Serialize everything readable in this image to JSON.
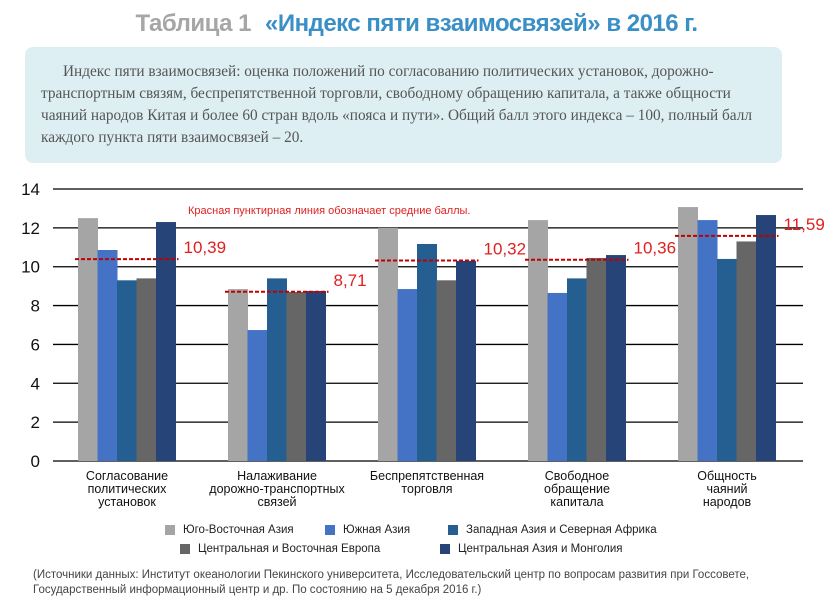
{
  "header": {
    "table_no": "Таблица 1",
    "title": "«Индекс пяти взаимосвязей» в 2016 г."
  },
  "description": "Индекс пяти взаимосвязей: оценка положений по согласованию политических установок, дорожно-транспортным связям, беспрепятственной торговли, свободному обращению капитала, а также общности чаяний народов Китая и более 60 стран вдоль «пояса и пути». Общий балл этого индекса – 100, полный балл каждого пункта пяти взаимосвязей – 20.",
  "chart_data": {
    "type": "bar",
    "annotation": "Красная пунктирная линия обозначает средние баллы.",
    "categories": [
      [
        "Согласование",
        "политических",
        "установок"
      ],
      [
        "Налаживание",
        "дорожно-транспортных",
        "связей"
      ],
      [
        "Беспрепятственная",
        "торговля"
      ],
      [
        "Свободное",
        "обращение",
        "капитала"
      ],
      [
        "Общность",
        "чаяний",
        "народов"
      ]
    ],
    "series": [
      {
        "name": "Юго-Восточная Азия",
        "color": "#a5a5a5",
        "values": [
          12.5,
          8.85,
          12.0,
          12.4,
          13.07
        ]
      },
      {
        "name": "Южная Азия",
        "color": "#4472c4",
        "values": [
          10.86,
          6.74,
          8.85,
          8.65,
          12.4
        ]
      },
      {
        "name": "Западная Азия и Северная Африка",
        "color": "#255e91",
        "values": [
          9.3,
          9.4,
          11.17,
          9.4,
          10.4
        ]
      },
      {
        "name": "Центральная и Восточная Европа",
        "color": "#666666",
        "values": [
          9.4,
          8.7,
          9.3,
          10.45,
          11.3
        ]
      },
      {
        "name": "Центральная Азия и Монголия",
        "color": "#264478",
        "values": [
          12.3,
          8.75,
          10.3,
          10.6,
          12.66
        ]
      }
    ],
    "averages": [
      10.39,
      8.71,
      10.32,
      10.36,
      11.59
    ],
    "average_labels": [
      "10,39",
      "8,71",
      "10,32",
      "10,36",
      "11,59"
    ],
    "average_color": "#c00000",
    "ylim": [
      0,
      14
    ],
    "yticks": [
      0,
      2,
      4,
      6,
      8,
      10,
      12,
      14
    ],
    "grid": true,
    "legend_position": "bottom"
  },
  "source": [
    "(Источники данных: Институт океанологии Пекинского университета, Исследовательский центр по вопросам развития при Госсовете,",
    "Государственный информационный центр и др. По состоянию на 5 декабря 2016 г.)"
  ]
}
